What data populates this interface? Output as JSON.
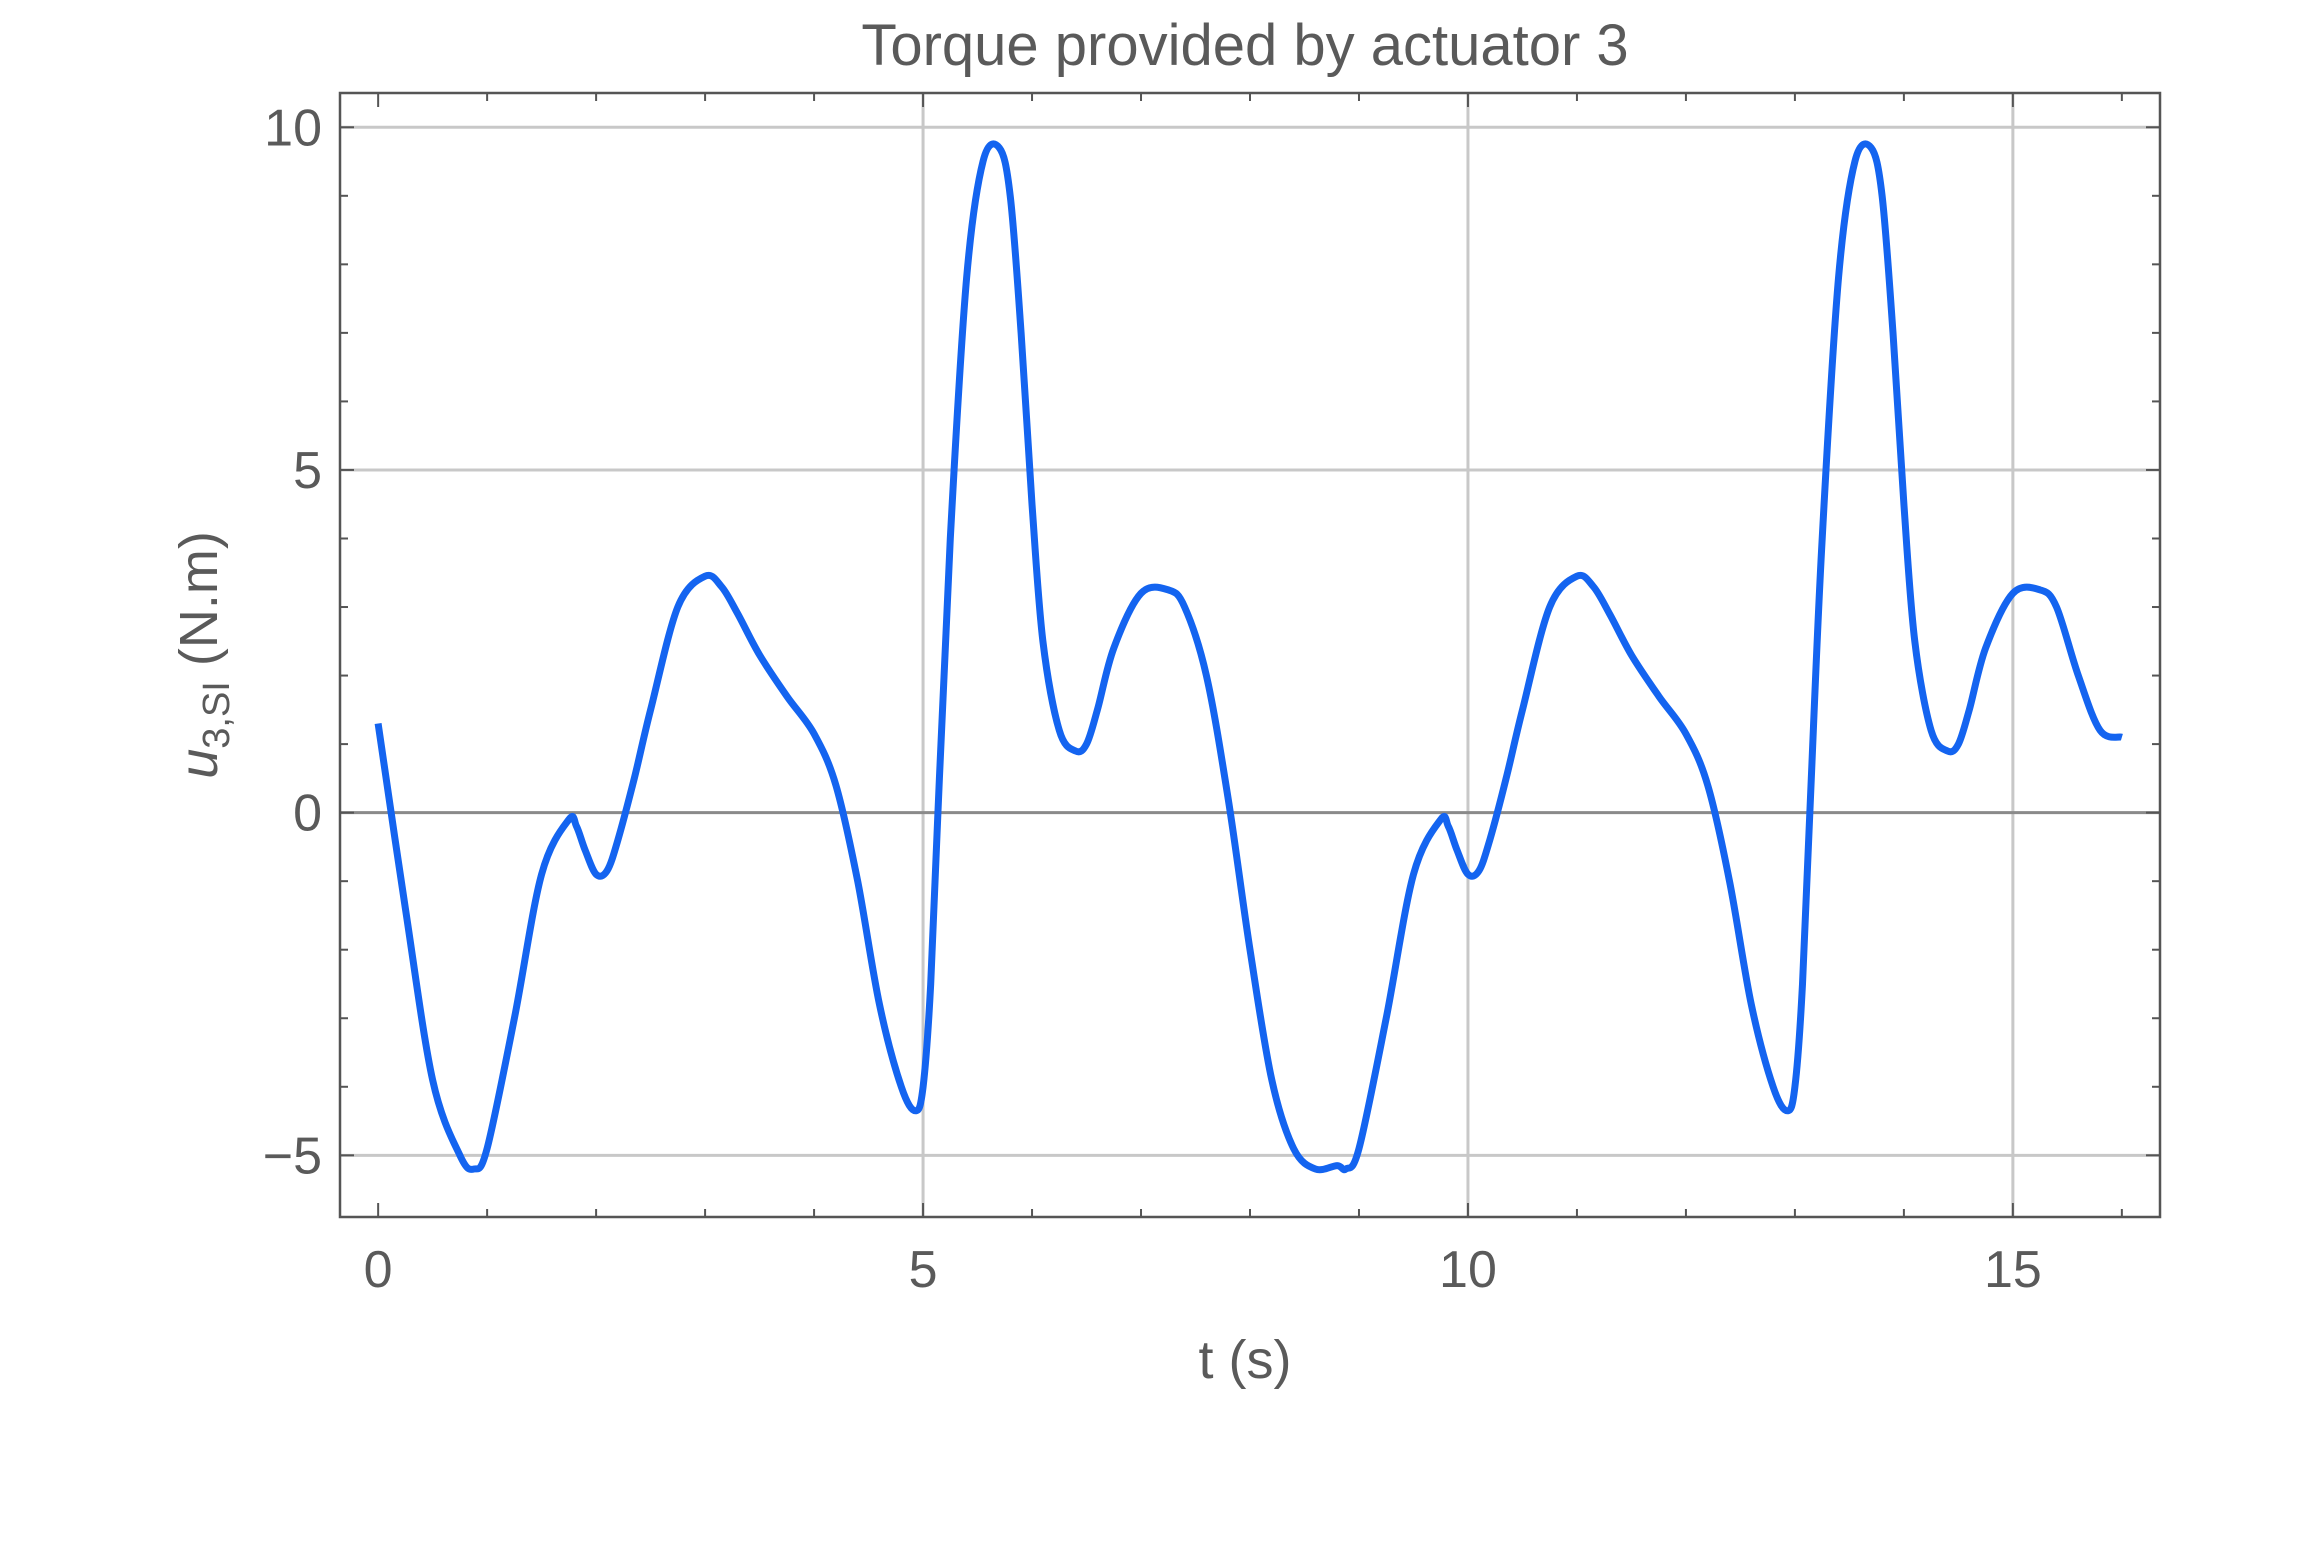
{
  "chart_data": {
    "type": "line",
    "title": "Torque provided by actuator 3",
    "xlabel": "t (s)",
    "ylabel_main": "u",
    "ylabel_sub": "3,SI",
    "ylabel_unit": " (N.m)",
    "xlim": [
      -0.35,
      16.35
    ],
    "ylim": [
      -5.9,
      10.5
    ],
    "x_ticks": [
      0,
      5,
      10,
      15
    ],
    "x_tick_labels": [
      "0",
      "5",
      "10",
      "15"
    ],
    "y_ticks": [
      -5,
      0,
      5,
      10
    ],
    "y_tick_labels": [
      "−5",
      "0",
      "5",
      "10"
    ],
    "grid": true,
    "line_color": "#1464f0",
    "grid_color": "#c8c8c8",
    "series": [
      {
        "name": "u3",
        "x": [
          0.0,
          0.25,
          0.5,
          0.75,
          0.88,
          1.0,
          1.25,
          1.5,
          1.75,
          1.82,
          1.9,
          2.0,
          2.1,
          2.2,
          2.35,
          2.5,
          2.75,
          3.0,
          3.15,
          3.3,
          3.5,
          3.75,
          4.0,
          4.2,
          4.4,
          4.6,
          4.8,
          4.93,
          5.0,
          5.07,
          5.15,
          5.25,
          5.4,
          5.55,
          5.7,
          5.8,
          5.9,
          6.0,
          6.1,
          6.25,
          6.4,
          6.5,
          6.6,
          6.75,
          7.0,
          7.25,
          7.4,
          7.6,
          7.8,
          8.0,
          8.2,
          8.4,
          8.6,
          8.8,
          8.88,
          9.0,
          9.25,
          9.5,
          9.75,
          9.82,
          9.9,
          10.0,
          10.1,
          10.2,
          10.35,
          10.5,
          10.75,
          11.0,
          11.15,
          11.3,
          11.5,
          11.75,
          12.0,
          12.2,
          12.4,
          12.6,
          12.8,
          12.93,
          13.0,
          13.07,
          13.15,
          13.25,
          13.4,
          13.55,
          13.7,
          13.8,
          13.9,
          14.0,
          14.1,
          14.25,
          14.4,
          14.5,
          14.6,
          14.75,
          15.0,
          15.25,
          15.4,
          15.6,
          15.8,
          16.0
        ],
        "y": [
          1.3,
          -1.4,
          -3.9,
          -5.0,
          -5.2,
          -4.9,
          -3.0,
          -0.9,
          -0.1,
          -0.2,
          -0.55,
          -0.9,
          -0.85,
          -0.4,
          0.5,
          1.5,
          3.0,
          3.45,
          3.3,
          2.9,
          2.3,
          1.7,
          1.15,
          0.4,
          -1.0,
          -2.8,
          -4.0,
          -4.35,
          -4.0,
          -2.5,
          0.5,
          4.0,
          7.8,
          9.5,
          9.7,
          9.0,
          7.0,
          4.5,
          2.5,
          1.2,
          0.9,
          1.0,
          1.5,
          2.4,
          3.2,
          3.25,
          3.0,
          2.0,
          0.2,
          -2.0,
          -3.9,
          -4.9,
          -5.2,
          -5.15,
          -5.2,
          -4.9,
          -3.0,
          -0.9,
          -0.1,
          -0.2,
          -0.55,
          -0.9,
          -0.85,
          -0.4,
          0.5,
          1.5,
          3.0,
          3.45,
          3.3,
          2.9,
          2.3,
          1.7,
          1.15,
          0.4,
          -1.0,
          -2.8,
          -4.0,
          -4.35,
          -4.0,
          -2.5,
          0.5,
          4.0,
          7.8,
          9.5,
          9.7,
          9.0,
          7.0,
          4.5,
          2.5,
          1.2,
          0.9,
          1.0,
          1.5,
          2.4,
          3.2,
          3.25,
          3.0,
          2.0,
          1.2,
          1.1
        ]
      }
    ]
  }
}
